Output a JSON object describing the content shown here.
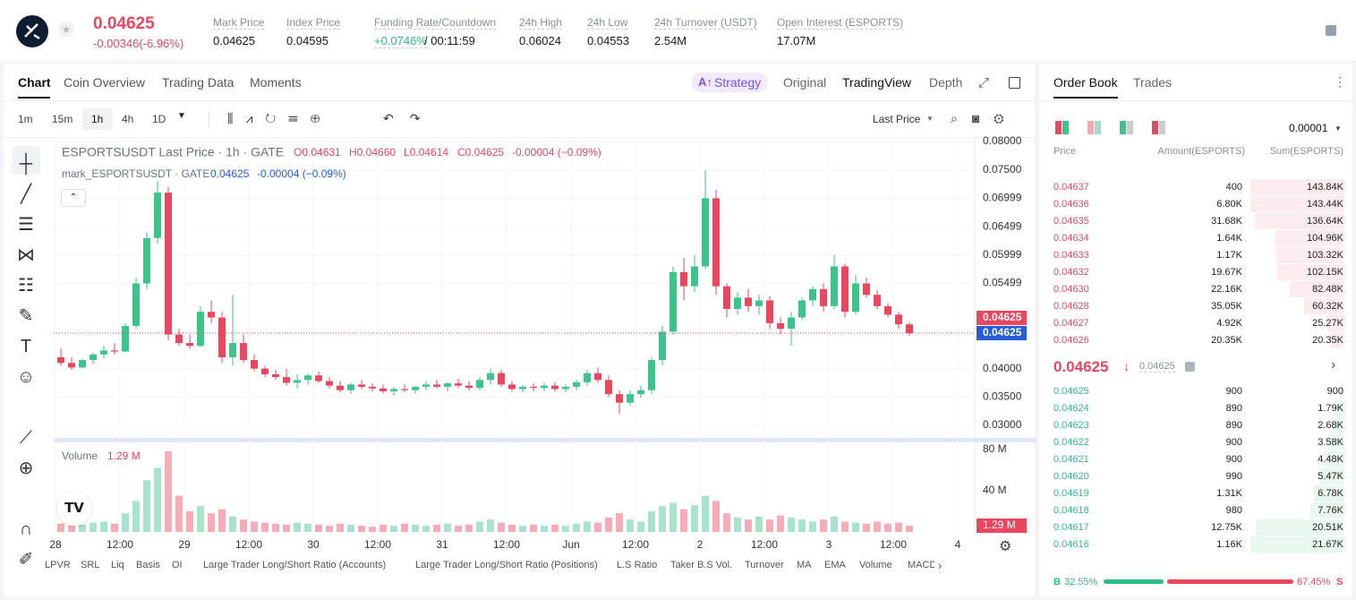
{
  "header": {
    "price": "0.04625",
    "change": "-0.00346(-6.96%)",
    "stats": [
      {
        "label": "Mark Price",
        "value": "0.04625"
      },
      {
        "label": "Index Price",
        "value": "0.04595"
      },
      {
        "label": "Funding Rate/Countdown",
        "value": "+0.0746%",
        "extra": "/ 00:11:59"
      },
      {
        "label": "24h High",
        "value": "0.06024"
      },
      {
        "label": "24h Low",
        "value": "0.04553"
      },
      {
        "label": "24h Turnover (USDT)",
        "value": "2.54M"
      },
      {
        "label": "Open Interest (ESPORTS)",
        "value": "17.07M"
      }
    ]
  },
  "tabs": [
    "Chart",
    "Coin Overview",
    "Trading Data",
    "Moments"
  ],
  "view_tabs": [
    "Strategy",
    "Original",
    "TradingView",
    "Depth"
  ],
  "intervals": [
    "1m",
    "15m",
    "1h",
    "4h",
    "1D"
  ],
  "price_type": "Last Price",
  "chart_data": {
    "type": "candlestick",
    "title": "ESPORTSUSDT Last Price · 1h · GATE",
    "ohlc_labels": [
      "O0.04631",
      "H0.04660",
      "L0.04614",
      "C0.04625",
      "-0.00004 (−0.09%)"
    ],
    "mark_title": "mark_ESPORTSUSDT · GATE",
    "mark_values": [
      "0.04625",
      "-0.00004 (−0.09%)"
    ],
    "up_color": "#3cc48c",
    "down_color": "#e8475f",
    "x_labels": [
      "28",
      "12:00",
      "29",
      "12:00",
      "30",
      "12:00",
      "31",
      "12:00",
      "Jun",
      "12:00",
      "2",
      "12:00",
      "3",
      "12:00",
      "4"
    ],
    "ylim": [
      0.03,
      0.08
    ],
    "yticks": [
      {
        "value": 0.08,
        "label": "0.08000"
      },
      {
        "value": 0.075,
        "label": "0.07500"
      },
      {
        "value": 0.06999,
        "label": "0.06999"
      },
      {
        "value": 0.06499,
        "label": "0.06499"
      },
      {
        "value": 0.05999,
        "label": "0.05999"
      },
      {
        "value": 0.05499,
        "label": "0.05499"
      },
      {
        "value": 0.04,
        "label": "0.04000"
      },
      {
        "value": 0.035,
        "label": "0.03500"
      },
      {
        "value": 0.03,
        "label": "0.03000"
      }
    ],
    "last_price": {
      "value": 0.04625,
      "label": "0.04625"
    },
    "mark_price": "0.04625",
    "candles": [
      [
        0.042,
        0.0435,
        0.0405,
        0.041
      ],
      [
        0.041,
        0.042,
        0.0398,
        0.0402
      ],
      [
        0.0402,
        0.0418,
        0.04,
        0.0415
      ],
      [
        0.0415,
        0.0428,
        0.0408,
        0.0425
      ],
      [
        0.0425,
        0.044,
        0.0418,
        0.0432
      ],
      [
        0.0432,
        0.0445,
        0.0425,
        0.043
      ],
      [
        0.043,
        0.048,
        0.0428,
        0.0475
      ],
      [
        0.0475,
        0.056,
        0.047,
        0.055
      ],
      [
        0.055,
        0.064,
        0.054,
        0.063
      ],
      [
        0.063,
        0.073,
        0.062,
        0.071
      ],
      [
        0.071,
        0.072,
        0.045,
        0.046
      ],
      [
        0.046,
        0.047,
        0.044,
        0.0445
      ],
      [
        0.0445,
        0.046,
        0.0435,
        0.044
      ],
      [
        0.044,
        0.051,
        0.0438,
        0.05
      ],
      [
        0.05,
        0.052,
        0.048,
        0.049
      ],
      [
        0.049,
        0.05,
        0.041,
        0.042
      ],
      [
        0.042,
        0.053,
        0.0405,
        0.0445
      ],
      [
        0.0445,
        0.046,
        0.041,
        0.0415
      ],
      [
        0.0415,
        0.0425,
        0.0395,
        0.04
      ],
      [
        0.04,
        0.0405,
        0.0385,
        0.039
      ],
      [
        0.039,
        0.0398,
        0.038,
        0.0385
      ],
      [
        0.0385,
        0.04,
        0.037,
        0.0375
      ],
      [
        0.0375,
        0.039,
        0.0365,
        0.038
      ],
      [
        0.038,
        0.0392,
        0.0372,
        0.0388
      ],
      [
        0.0388,
        0.0395,
        0.0375,
        0.0378
      ],
      [
        0.0378,
        0.0385,
        0.0365,
        0.037
      ],
      [
        0.037,
        0.0378,
        0.0358,
        0.0362
      ],
      [
        0.0362,
        0.0375,
        0.0355,
        0.0372
      ],
      [
        0.0372,
        0.038,
        0.0364,
        0.0368
      ],
      [
        0.0368,
        0.0374,
        0.036,
        0.0365
      ],
      [
        0.0365,
        0.0372,
        0.0356,
        0.036
      ],
      [
        0.036,
        0.0368,
        0.0352,
        0.0364
      ],
      [
        0.0364,
        0.0372,
        0.0358,
        0.0362
      ],
      [
        0.0362,
        0.037,
        0.0356,
        0.0368
      ],
      [
        0.0368,
        0.0378,
        0.0362,
        0.0372
      ],
      [
        0.0372,
        0.038,
        0.0365,
        0.0368
      ],
      [
        0.0368,
        0.0376,
        0.036,
        0.0374
      ],
      [
        0.0374,
        0.0382,
        0.0366,
        0.037
      ],
      [
        0.037,
        0.0378,
        0.0362,
        0.0366
      ],
      [
        0.0366,
        0.0385,
        0.0362,
        0.038
      ],
      [
        0.038,
        0.04,
        0.0372,
        0.0392
      ],
      [
        0.0392,
        0.0398,
        0.0368,
        0.0372
      ],
      [
        0.0372,
        0.0378,
        0.036,
        0.0364
      ],
      [
        0.0364,
        0.0372,
        0.0358,
        0.0368
      ],
      [
        0.0368,
        0.0374,
        0.036,
        0.0366
      ],
      [
        0.0366,
        0.0375,
        0.036,
        0.037
      ],
      [
        0.037,
        0.0376,
        0.036,
        0.0364
      ],
      [
        0.0364,
        0.0372,
        0.0358,
        0.0368
      ],
      [
        0.0368,
        0.038,
        0.0362,
        0.0376
      ],
      [
        0.0376,
        0.0398,
        0.037,
        0.0392
      ],
      [
        0.0392,
        0.0402,
        0.0375,
        0.038
      ],
      [
        0.038,
        0.0388,
        0.035,
        0.0355
      ],
      [
        0.0355,
        0.0362,
        0.032,
        0.034
      ],
      [
        0.034,
        0.0362,
        0.0335,
        0.0355
      ],
      [
        0.0355,
        0.037,
        0.0348,
        0.0362
      ],
      [
        0.0362,
        0.042,
        0.0355,
        0.0415
      ],
      [
        0.0415,
        0.0475,
        0.0405,
        0.0465
      ],
      [
        0.0465,
        0.058,
        0.046,
        0.057
      ],
      [
        0.057,
        0.0595,
        0.052,
        0.0545
      ],
      [
        0.0545,
        0.06,
        0.0535,
        0.058
      ],
      [
        0.058,
        0.075,
        0.0575,
        0.07
      ],
      [
        0.07,
        0.0715,
        0.053,
        0.0545
      ],
      [
        0.0545,
        0.055,
        0.049,
        0.0505
      ],
      [
        0.0505,
        0.0535,
        0.0495,
        0.0525
      ],
      [
        0.0525,
        0.054,
        0.05,
        0.051
      ],
      [
        0.051,
        0.053,
        0.0495,
        0.052
      ],
      [
        0.052,
        0.0528,
        0.047,
        0.048
      ],
      [
        0.048,
        0.049,
        0.046,
        0.047
      ],
      [
        0.047,
        0.05,
        0.044,
        0.049
      ],
      [
        0.049,
        0.0525,
        0.0485,
        0.052
      ],
      [
        0.052,
        0.0545,
        0.051,
        0.054
      ],
      [
        0.054,
        0.055,
        0.05,
        0.051
      ],
      [
        0.051,
        0.06,
        0.0505,
        0.058
      ],
      [
        0.058,
        0.0585,
        0.049,
        0.05
      ],
      [
        0.05,
        0.0565,
        0.0495,
        0.055
      ],
      [
        0.055,
        0.056,
        0.0525,
        0.053
      ],
      [
        0.053,
        0.0538,
        0.0505,
        0.051
      ],
      [
        0.051,
        0.0515,
        0.049,
        0.0495
      ],
      [
        0.0495,
        0.05,
        0.047,
        0.0478
      ],
      [
        0.0478,
        0.0482,
        0.0458,
        0.04625
      ]
    ],
    "volume": {
      "title": "Volume",
      "last": "1.29 M",
      "ylim": [
        0,
        84
      ],
      "yticks": [
        {
          "value": 80,
          "label": "80 M"
        },
        {
          "value": 40,
          "label": "40 M"
        }
      ],
      "values": [
        8,
        6,
        7,
        9,
        10,
        8,
        18,
        30,
        50,
        62,
        78,
        35,
        20,
        25,
        18,
        22,
        15,
        12,
        10,
        9,
        8,
        7,
        9,
        8,
        7,
        6,
        8,
        7,
        6,
        5,
        7,
        6,
        8,
        7,
        6,
        7,
        8,
        6,
        7,
        10,
        12,
        9,
        7,
        6,
        7,
        6,
        7,
        6,
        8,
        10,
        9,
        14,
        18,
        12,
        10,
        20,
        25,
        28,
        22,
        26,
        35,
        30,
        18,
        14,
        12,
        15,
        12,
        16,
        14,
        12,
        10,
        12,
        15,
        10,
        9,
        8,
        10,
        8,
        9,
        6
      ]
    }
  },
  "order_book": {
    "tabs": [
      "Order Book",
      "Trades"
    ],
    "precision": "0.00001",
    "columns": [
      "Price",
      "Amount(ESPORTS)",
      "Sum(ESPORTS)"
    ],
    "asks": [
      [
        "0.04637",
        "400",
        "143.84K"
      ],
      [
        "0.04636",
        "6.80K",
        "143.44K"
      ],
      [
        "0.04635",
        "31.68K",
        "136.64K"
      ],
      [
        "0.04634",
        "1.64K",
        "104.96K"
      ],
      [
        "0.04633",
        "1.17K",
        "103.32K"
      ],
      [
        "0.04632",
        "19.67K",
        "102.15K"
      ],
      [
        "0.04630",
        "22.16K",
        "82.48K"
      ],
      [
        "0.04628",
        "35.05K",
        "60.32K"
      ],
      [
        "0.04627",
        "4.92K",
        "25.27K"
      ],
      [
        "0.04626",
        "20.35K",
        "20.35K"
      ]
    ],
    "mid_price": "0.04625",
    "mid_mark": "0.04625",
    "bids": [
      [
        "0.04625",
        "900",
        "900"
      ],
      [
        "0.04624",
        "890",
        "1.79K"
      ],
      [
        "0.04623",
        "890",
        "2.68K"
      ],
      [
        "0.04622",
        "900",
        "3.58K"
      ],
      [
        "0.04621",
        "900",
        "4.48K"
      ],
      [
        "0.04620",
        "990",
        "5.47K"
      ],
      [
        "0.04619",
        "1.31K",
        "6.78K"
      ],
      [
        "0.04618",
        "980",
        "7.76K"
      ],
      [
        "0.04617",
        "12.75K",
        "20.51K"
      ],
      [
        "0.04616",
        "1.16K",
        "21.67K"
      ]
    ],
    "buy_label": "B",
    "sell_label": "S",
    "buy_pct": {
      "value": 32.55,
      "label": "32.55%"
    },
    "sell_pct": {
      "value": 67.45,
      "label": "67.45%"
    }
  },
  "indicators": [
    "LPVR",
    "SRL",
    "Liq",
    "Basis",
    "OI",
    "Large Trader Long/Short Ratio (Accounts)",
    "Large Trader Long/Short Ratio (Positions)",
    "L.S Ratio",
    "Taker B.S Vol.",
    "Turnover",
    "MA",
    "EMA",
    "Volume",
    "MACD"
  ]
}
